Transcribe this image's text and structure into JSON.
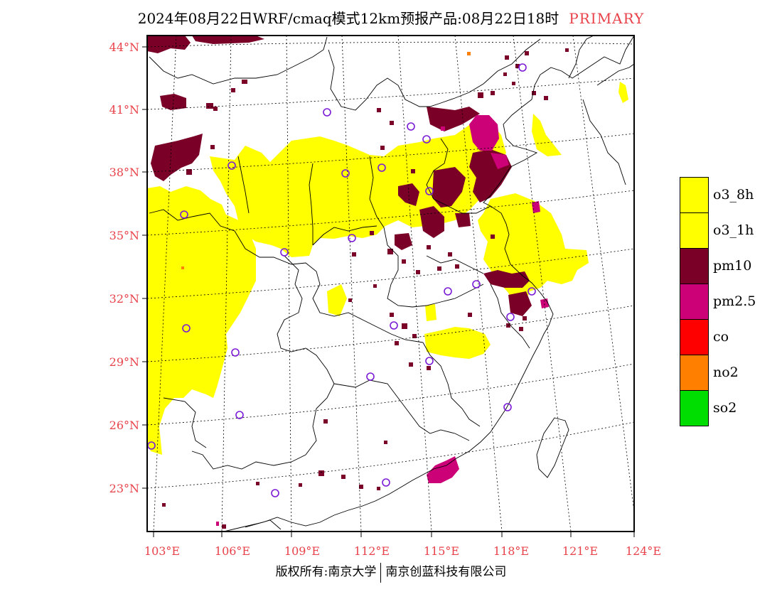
{
  "title": {
    "main": "2024年08月22日WRF/cmaq模式12km预报产品:08月22日18时",
    "tag": "PRIMARY"
  },
  "map": {
    "lat_labels": [
      "44°N",
      "41°N",
      "38°N",
      "35°N",
      "32°N",
      "29°N",
      "26°N",
      "23°N"
    ],
    "lon_labels": [
      "103°E",
      "106°E",
      "109°E",
      "112°E",
      "115°E",
      "118°E",
      "121°E",
      "124°E"
    ],
    "colors": {
      "o3_8h": "#ffff00",
      "o3_1h": "#ffff00",
      "pm10": "#7a0028",
      "pm25": "#cc0077",
      "co": "#ff0000",
      "no2": "#ff7f00",
      "so2": "#00dd00",
      "station": "#7a1bd6",
      "label": "#e8424a"
    }
  },
  "legend": {
    "items": [
      {
        "label": "o3_8h",
        "color": "#ffff00"
      },
      {
        "label": "o3_1h",
        "color": "#ffff00"
      },
      {
        "label": "pm10",
        "color": "#7a0028"
      },
      {
        "label": "pm2.5",
        "color": "#cc0077"
      },
      {
        "label": "co",
        "color": "#ff0000"
      },
      {
        "label": "no2",
        "color": "#ff7f00"
      },
      {
        "label": "so2",
        "color": "#00dd00"
      }
    ]
  },
  "copyright": {
    "left": "版权所有:南京大学",
    "right": "南京创蓝科技有限公司"
  }
}
